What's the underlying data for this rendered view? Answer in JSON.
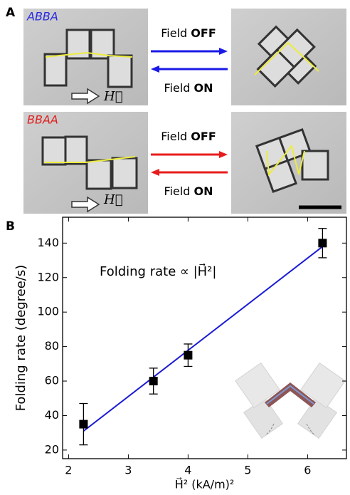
{
  "panel_a": {
    "label": "A",
    "rows": [
      {
        "sample": "ABBA",
        "sample_color": "#2a2ae0",
        "field_symbol": "H⃗",
        "arrow_color": "#1a1ae6",
        "arrows": [
          {
            "label": "Field",
            "state": "OFF"
          },
          {
            "label": "Field",
            "state": "ON"
          }
        ]
      },
      {
        "sample": "BBAA",
        "sample_color": "#e02020",
        "field_symbol": "H⃗",
        "arrow_color": "#e81c1c",
        "arrows": [
          {
            "label": "Field",
            "state": "OFF"
          },
          {
            "label": "Field",
            "state": "ON"
          }
        ]
      }
    ]
  },
  "chart_data": {
    "type": "scatter",
    "panel_label": "B",
    "x_label": "H⃗² (kA/m)²",
    "y_label": "Folding rate (degree/s)",
    "annotation": "Folding rate ∝ |H⃗²|",
    "x": [
      2.25,
      3.42,
      4.0,
      6.25
    ],
    "values": [
      35,
      60,
      75,
      140
    ],
    "errors": [
      12,
      7.5,
      6.5,
      8.5
    ],
    "color": "#000000",
    "fit": {
      "x": [
        2.25,
        6.25
      ],
      "y": [
        31,
        138
      ],
      "color": "#1a1ad6"
    },
    "xlim": [
      1.9,
      6.65
    ],
    "xticks": [
      2,
      3,
      4,
      5,
      6
    ],
    "ylim": [
      15,
      155
    ],
    "yticks": [
      20,
      40,
      60,
      80,
      100,
      120,
      140
    ]
  }
}
